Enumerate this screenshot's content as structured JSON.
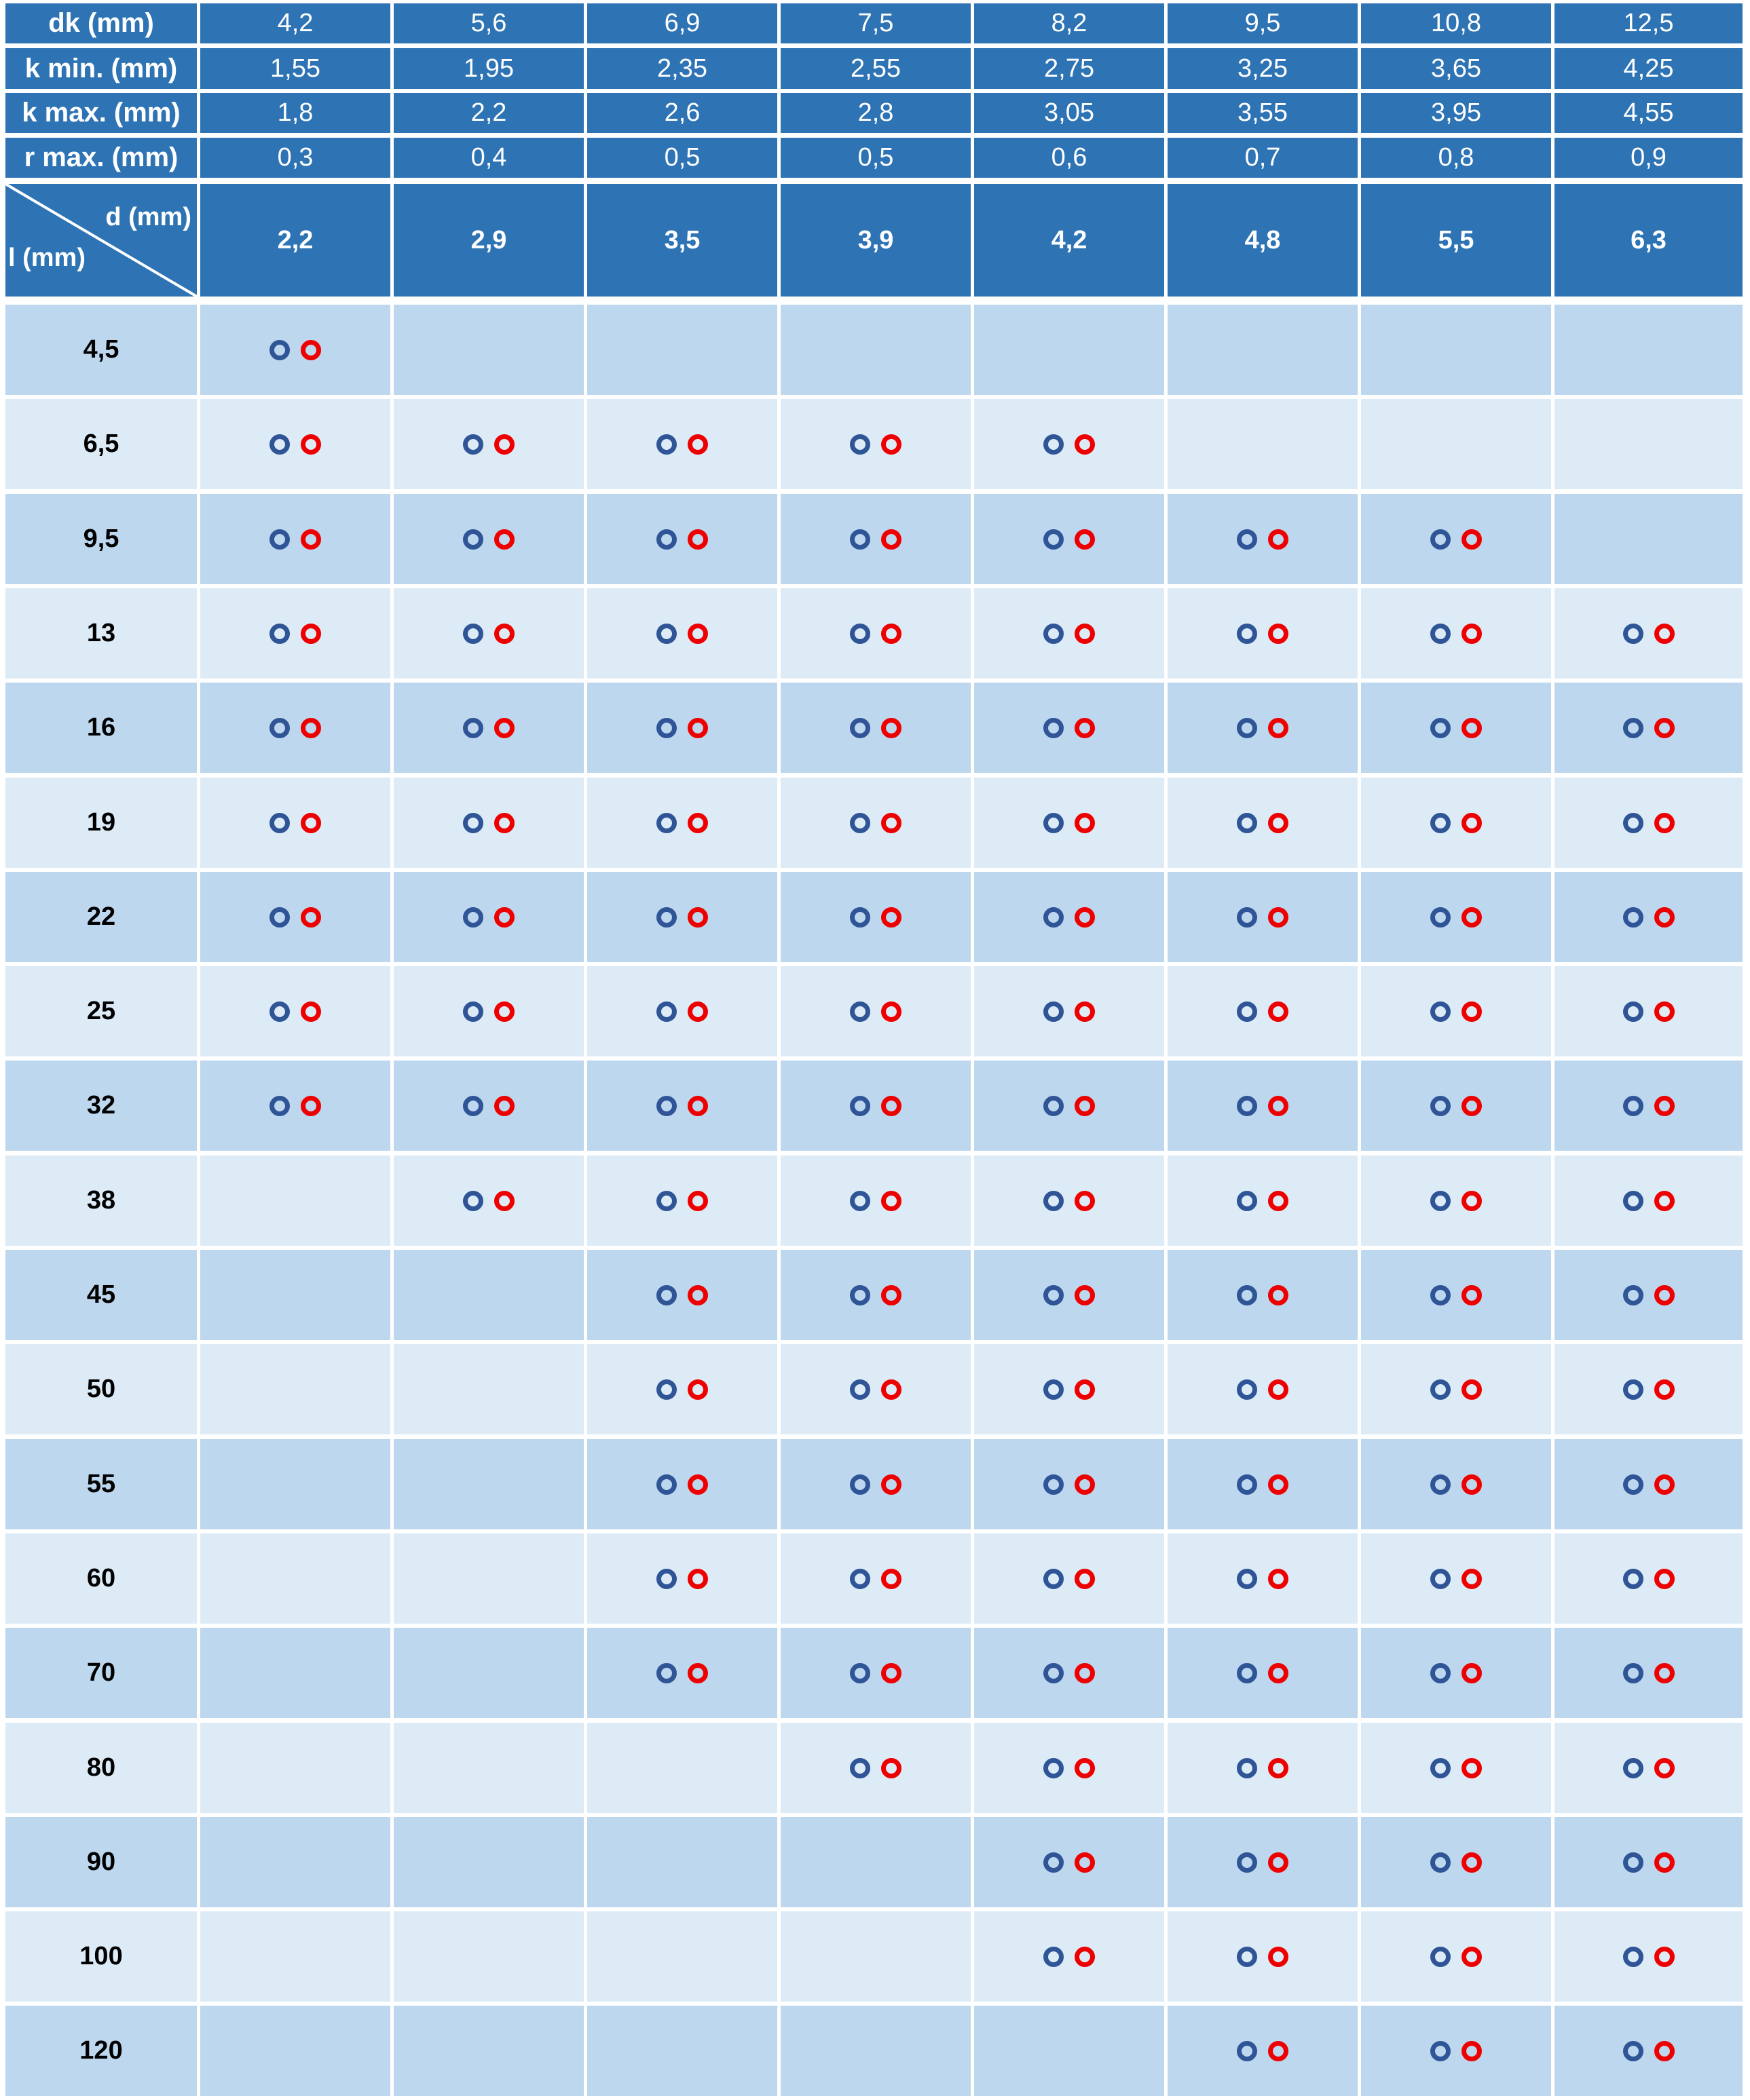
{
  "header_rows": [
    {
      "label": "dk (mm)",
      "values": [
        "4,2",
        "5,6",
        "6,9",
        "7,5",
        "8,2",
        "9,5",
        "10,8",
        "12,5"
      ]
    },
    {
      "label": "k min. (mm)",
      "values": [
        "1,55",
        "1,95",
        "2,35",
        "2,55",
        "2,75",
        "3,25",
        "3,65",
        "4,25"
      ]
    },
    {
      "label": "k max. (mm)",
      "values": [
        "1,8",
        "2,2",
        "2,6",
        "2,8",
        "3,05",
        "3,55",
        "3,95",
        "4,55"
      ]
    },
    {
      "label": "r max. (mm)",
      "values": [
        "0,3",
        "0,4",
        "0,5",
        "0,5",
        "0,6",
        "0,7",
        "0,8",
        "0,9"
      ]
    }
  ],
  "corner": {
    "column_axis": "d (mm)",
    "row_axis": "l (mm)"
  },
  "diameters": [
    "2,2",
    "2,9",
    "3,5",
    "3,9",
    "4,2",
    "4,8",
    "5,5",
    "6,3"
  ],
  "colors": {
    "header_bg": "#2e74b5",
    "row_dark": "#bdd7ee",
    "row_light": "#ddebf7",
    "blue_ring": "#2f5597",
    "red_ring": "#ee0000"
  },
  "length_rows": [
    {
      "length": "4,5",
      "availability": [
        true,
        false,
        false,
        false,
        false,
        false,
        false,
        false
      ]
    },
    {
      "length": "6,5",
      "availability": [
        true,
        true,
        true,
        true,
        true,
        false,
        false,
        false
      ]
    },
    {
      "length": "9,5",
      "availability": [
        true,
        true,
        true,
        true,
        true,
        true,
        true,
        false
      ]
    },
    {
      "length": "13",
      "availability": [
        true,
        true,
        true,
        true,
        true,
        true,
        true,
        true
      ]
    },
    {
      "length": "16",
      "availability": [
        true,
        true,
        true,
        true,
        true,
        true,
        true,
        true
      ]
    },
    {
      "length": "19",
      "availability": [
        true,
        true,
        true,
        true,
        true,
        true,
        true,
        true
      ]
    },
    {
      "length": "22",
      "availability": [
        true,
        true,
        true,
        true,
        true,
        true,
        true,
        true
      ]
    },
    {
      "length": "25",
      "availability": [
        true,
        true,
        true,
        true,
        true,
        true,
        true,
        true
      ]
    },
    {
      "length": "32",
      "availability": [
        true,
        true,
        true,
        true,
        true,
        true,
        true,
        true
      ]
    },
    {
      "length": "38",
      "availability": [
        false,
        true,
        true,
        true,
        true,
        true,
        true,
        true
      ]
    },
    {
      "length": "45",
      "availability": [
        false,
        false,
        true,
        true,
        true,
        true,
        true,
        true
      ]
    },
    {
      "length": "50",
      "availability": [
        false,
        false,
        true,
        true,
        true,
        true,
        true,
        true
      ]
    },
    {
      "length": "55",
      "availability": [
        false,
        false,
        true,
        true,
        true,
        true,
        true,
        true
      ]
    },
    {
      "length": "60",
      "availability": [
        false,
        false,
        true,
        true,
        true,
        true,
        true,
        true
      ]
    },
    {
      "length": "70",
      "availability": [
        false,
        false,
        true,
        true,
        true,
        true,
        true,
        true
      ]
    },
    {
      "length": "80",
      "availability": [
        false,
        false,
        false,
        true,
        true,
        true,
        true,
        true
      ]
    },
    {
      "length": "90",
      "availability": [
        false,
        false,
        false,
        false,
        true,
        true,
        true,
        true
      ]
    },
    {
      "length": "100",
      "availability": [
        false,
        false,
        false,
        false,
        true,
        true,
        true,
        true
      ]
    },
    {
      "length": "120",
      "availability": [
        false,
        false,
        false,
        false,
        false,
        true,
        true,
        true
      ]
    }
  ]
}
